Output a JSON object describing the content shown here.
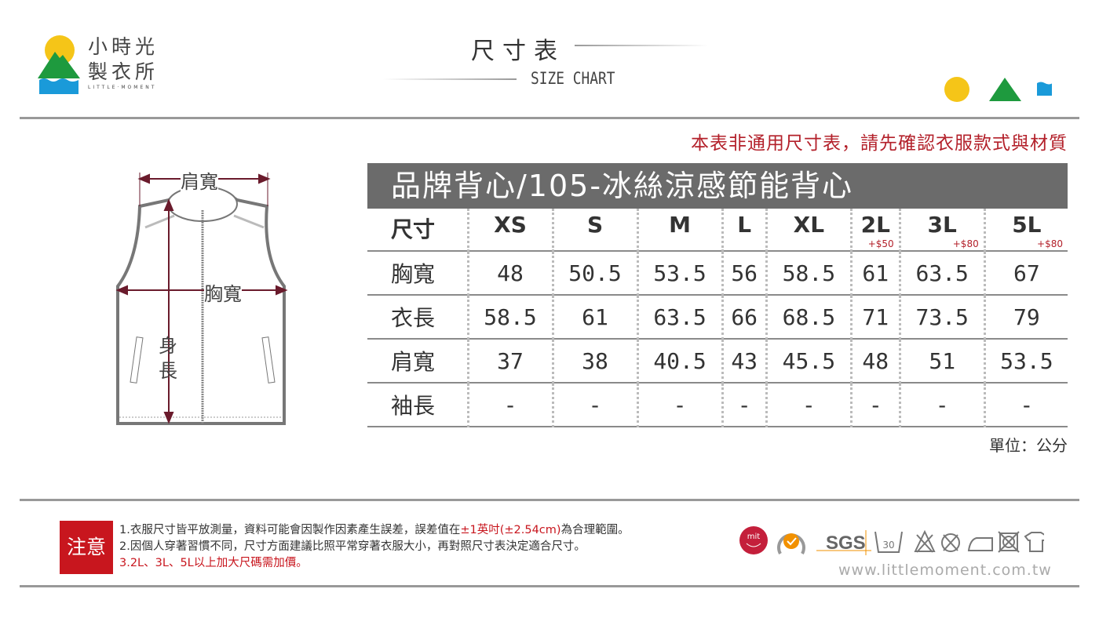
{
  "brand": {
    "name_line1": "小時光",
    "name_line2": "製衣所",
    "name_en": "LITTLE·MOMENT"
  },
  "header": {
    "title_zh": "尺寸表",
    "title_en": "SIZE CHART"
  },
  "notice": "本表非通用尺寸表，請先確認衣服款式與材質",
  "diagram": {
    "shoulder": "肩寬",
    "chest": "胸寬",
    "length_1": "身",
    "length_2": "長"
  },
  "table": {
    "title": "品牌背心/105-冰絲涼感節能背心",
    "header_label": "尺寸",
    "sizes": [
      {
        "s": "XS",
        "p": ""
      },
      {
        "s": "S",
        "p": ""
      },
      {
        "s": "M",
        "p": ""
      },
      {
        "s": "L",
        "p": ""
      },
      {
        "s": "XL",
        "p": ""
      },
      {
        "s": "2L",
        "p": "+$50"
      },
      {
        "s": "3L",
        "p": "+$80"
      },
      {
        "s": "5L",
        "p": "+$80"
      }
    ],
    "rows": [
      {
        "label": "胸寬",
        "values": [
          "48",
          "50.5",
          "53.5",
          "56",
          "58.5",
          "61",
          "63.5",
          "67"
        ]
      },
      {
        "label": "衣長",
        "values": [
          "58.5",
          "61",
          "63.5",
          "66",
          "68.5",
          "71",
          "73.5",
          "79"
        ]
      },
      {
        "label": "肩寬",
        "values": [
          "37",
          "38",
          "40.5",
          "43",
          "45.5",
          "48",
          "51",
          "53.5"
        ]
      },
      {
        "label": "袖長",
        "values": [
          "-",
          "-",
          "-",
          "-",
          "-",
          "-",
          "-",
          "-"
        ]
      }
    ],
    "unit": "單位：公分"
  },
  "footer": {
    "note_badge": "注意",
    "note1_a": "1.衣服尺寸皆平放測量，資料可能會因製作因素產生誤差，誤差值在",
    "note1_red": "±1英吋(±2.54cm)",
    "note1_b": "為合理範圍。",
    "note2": "2.因個人穿著習慣不同，尺寸方面建議比照平常穿著衣服大小，再對照尺寸表決定適合尺寸。",
    "note3": "3.2L、3L、5L以上加大尺碼需加價。",
    "mit": "mit",
    "sgs": "SGS",
    "wash_temp": "30",
    "url": "www.littlemoment.com.tw"
  },
  "colors": {
    "sun": "#f5c518",
    "mountain": "#1e9a3e",
    "water": "#1a9ad9",
    "accent_red": "#c8161e",
    "title_bar": "#6b6b6b"
  }
}
